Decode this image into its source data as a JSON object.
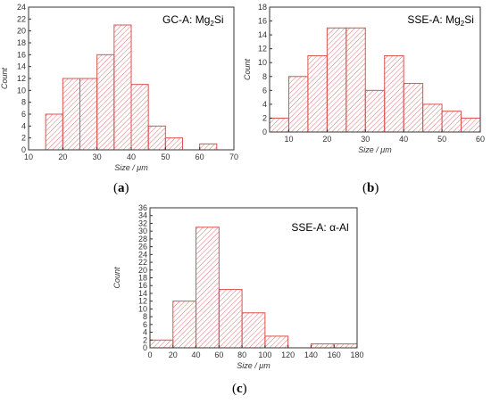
{
  "colors": {
    "bar_stroke": "#d9534f",
    "bar_hatch": "#e07070",
    "axis": "#333333"
  },
  "chart_data": [
    {
      "id": "a",
      "type": "bar",
      "caption_letter": "a",
      "inset_prefix": "GC-A: Mg",
      "inset_sub": "2",
      "inset_suffix": "Si",
      "xlabel": "Size / μm",
      "ylabel": "Count",
      "xlim": [
        10,
        70
      ],
      "ylim": [
        0,
        24
      ],
      "xticks": [
        10,
        20,
        30,
        40,
        50,
        60,
        70
      ],
      "yticks": [
        0,
        2,
        4,
        6,
        8,
        10,
        12,
        14,
        16,
        18,
        20,
        22,
        24
      ],
      "bin_width": 5,
      "bins": [
        15,
        20,
        25,
        30,
        35,
        40,
        45,
        50,
        55,
        60
      ],
      "values": [
        6,
        12,
        12,
        16,
        21,
        11,
        4,
        2,
        0,
        1
      ]
    },
    {
      "id": "b",
      "type": "bar",
      "caption_letter": "b",
      "inset_prefix": "SSE-A: Mg",
      "inset_sub": "2",
      "inset_suffix": "Si",
      "xlabel": "Size / μm",
      "ylabel": "Count",
      "xlim": [
        5,
        60
      ],
      "ylim": [
        0,
        18
      ],
      "xticks": [
        10,
        20,
        30,
        40,
        50,
        60
      ],
      "yticks": [
        0,
        2,
        4,
        6,
        8,
        10,
        12,
        14,
        16,
        18
      ],
      "bin_width": 5,
      "bins": [
        5,
        10,
        15,
        20,
        25,
        30,
        35,
        40,
        45,
        50,
        55
      ],
      "values": [
        2,
        8,
        11,
        15,
        15,
        6,
        11,
        7,
        4,
        3,
        2
      ]
    },
    {
      "id": "c",
      "type": "bar",
      "caption_letter": "c",
      "inset_prefix": "SSE-A: α-Al",
      "inset_sub": "",
      "inset_suffix": "",
      "xlabel": "Size / μm",
      "ylabel": "Count",
      "xlim": [
        0,
        180
      ],
      "ylim": [
        0,
        36
      ],
      "xticks": [
        0,
        20,
        40,
        60,
        80,
        100,
        120,
        140,
        160,
        180
      ],
      "yticks": [
        0,
        2,
        4,
        6,
        8,
        10,
        12,
        14,
        16,
        18,
        20,
        22,
        24,
        26,
        28,
        30,
        32,
        34,
        36
      ],
      "bin_width": 20,
      "bins": [
        0,
        20,
        40,
        60,
        80,
        100,
        120,
        140,
        160
      ],
      "values": [
        2,
        12,
        31,
        15,
        9,
        3,
        0,
        1,
        1
      ]
    }
  ]
}
